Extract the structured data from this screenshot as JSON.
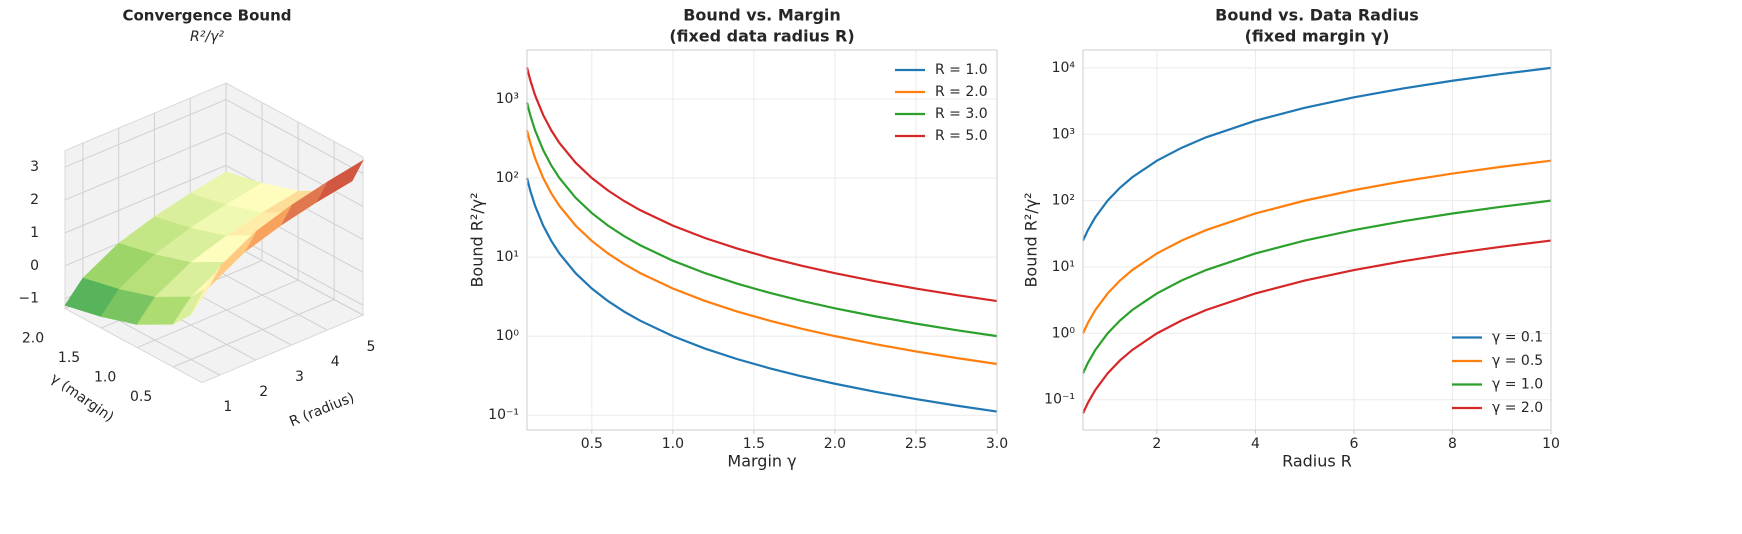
{
  "chart_data": [
    {
      "type": "surface",
      "title": "Convergence Bound",
      "subtitle": "R²/γ²",
      "xlabel": "R (radius)",
      "ylabel": "γ (margin)",
      "x": [
        0.5,
        1,
        2,
        3,
        4,
        5
      ],
      "y": [
        0.1,
        0.25,
        0.5,
        1,
        1.5,
        2
      ],
      "z": [
        [
          1.4,
          2.0,
          2.6,
          2.95,
          3.2,
          3.4
        ],
        [
          0.6,
          1.2,
          1.81,
          2.16,
          2.41,
          2.6
        ],
        [
          0.0,
          0.6,
          1.2,
          1.56,
          1.81,
          2.0
        ],
        [
          -0.6,
          0.0,
          0.6,
          0.95,
          1.2,
          1.4
        ],
        [
          -0.95,
          -0.35,
          0.25,
          0.6,
          0.85,
          1.05
        ],
        [
          -1.2,
          -0.6,
          0.0,
          0.35,
          0.6,
          0.8
        ]
      ],
      "xlim": [
        0.5,
        5
      ],
      "ylim": [
        0.1,
        2
      ],
      "zlim": [
        -1.3,
        3.5
      ],
      "xticks": [
        1,
        2,
        3,
        4,
        5
      ],
      "yticks": [
        0.5,
        {
          "value": 1,
          "label": "1.0"
        },
        1.5,
        {
          "value": 2,
          "label": "2.0"
        }
      ],
      "zticks": [
        {
          "value": -1,
          "label": "−1"
        },
        0,
        1,
        2,
        3
      ],
      "colormap": [
        "#1a9850",
        "#a6d96a",
        "#ffffbf",
        "#fdae61",
        "#a50026"
      ]
    },
    {
      "type": "line",
      "title": [
        "Bound vs. Margin",
        "(fixed data radius R)"
      ],
      "xlabel": "Margin γ",
      "ylabel": "Bound R²/γ²",
      "x": [
        0.1,
        0.12,
        0.15,
        0.2,
        0.25,
        0.3,
        0.4,
        0.5,
        0.6,
        0.7,
        0.8,
        1.0,
        1.2,
        1.4,
        1.6,
        1.8,
        2.0,
        2.25,
        2.5,
        2.75,
        3.0
      ],
      "series": [
        {
          "name": "R = 1.0",
          "color": "#1f77b4",
          "values": [
            100,
            69.44,
            44.44,
            25,
            16,
            11.11,
            6.25,
            4,
            2.778,
            2.041,
            1.5625,
            1,
            0.6944,
            0.5102,
            0.3906,
            0.3086,
            0.25,
            0.1975,
            0.16,
            0.1322,
            0.1111
          ]
        },
        {
          "name": "R = 2.0",
          "color": "#ff7f0e",
          "values": [
            400,
            277.8,
            177.8,
            100,
            64,
            44.44,
            25,
            16,
            11.11,
            8.163,
            6.25,
            4,
            2.778,
            2.041,
            1.5625,
            1.235,
            1,
            0.7901,
            0.64,
            0.5289,
            0.4444
          ]
        },
        {
          "name": "R = 3.0",
          "color": "#2ca02c",
          "values": [
            900,
            625,
            400,
            225,
            144,
            100,
            56.25,
            36,
            25,
            18.37,
            14.06,
            9,
            6.25,
            4.592,
            3.516,
            2.778,
            2.25,
            1.778,
            1.44,
            1.19,
            1
          ]
        },
        {
          "name": "R = 5.0",
          "color": "#d62728",
          "values": [
            2500,
            1736,
            1111,
            625,
            400,
            277.8,
            156.25,
            100,
            69.44,
            51.02,
            39.06,
            25,
            17.36,
            12.76,
            9.766,
            7.716,
            6.25,
            4.938,
            4,
            3.306,
            2.778
          ]
        }
      ],
      "xlim": [
        0.1,
        3.0
      ],
      "ylim": [
        0.065,
        4160
      ],
      "log_y": true,
      "grid": true,
      "legend": "upper right",
      "xticks": [
        0.5,
        {
          "value": 1,
          "label": "1.0"
        },
        1.5,
        {
          "value": 2,
          "label": "2.0"
        },
        2.5,
        {
          "value": 3,
          "label": "3.0"
        }
      ],
      "yticks": [
        {
          "value": 0.1,
          "label": "10⁻¹"
        },
        {
          "value": 1,
          "label": "10⁰"
        },
        {
          "value": 10,
          "label": "10¹"
        },
        {
          "value": 100,
          "label": "10²"
        },
        {
          "value": 1000,
          "label": "10³"
        }
      ]
    },
    {
      "type": "line",
      "title": [
        "Bound vs. Data Radius",
        "(fixed margin γ)"
      ],
      "xlabel": "Radius R",
      "ylabel": "Bound R²/γ²",
      "x": [
        0.5,
        0.6,
        0.75,
        1,
        1.25,
        1.5,
        2,
        2.5,
        3,
        4,
        5,
        6,
        7,
        8,
        9,
        10
      ],
      "series": [
        {
          "name": "γ = 0.1",
          "color": "#1f77b4",
          "values": [
            25,
            36,
            56.25,
            100,
            156.25,
            225,
            400,
            625,
            900,
            1600,
            2500,
            3600,
            4900,
            6400,
            8100,
            10000
          ]
        },
        {
          "name": "γ = 0.5",
          "color": "#ff7f0e",
          "values": [
            1,
            1.44,
            2.25,
            4,
            6.25,
            9,
            16,
            25,
            36,
            64,
            100,
            144,
            196,
            256,
            324,
            400
          ]
        },
        {
          "name": "γ = 1.0",
          "color": "#2ca02c",
          "values": [
            0.25,
            0.36,
            0.5625,
            1,
            1.5625,
            2.25,
            4,
            6.25,
            9,
            16,
            25,
            36,
            49,
            64,
            81,
            100
          ]
        },
        {
          "name": "γ = 2.0",
          "color": "#d62728",
          "values": [
            0.0625,
            0.09,
            0.1406,
            0.25,
            0.3906,
            0.5625,
            1,
            1.5625,
            2.25,
            4,
            6.25,
            9,
            12.25,
            16,
            20.25,
            25
          ]
        }
      ],
      "xlim": [
        0.5,
        10
      ],
      "ylim": [
        0.035,
        18600
      ],
      "log_y": true,
      "grid": true,
      "legend": "lower right",
      "xticks": [
        2,
        4,
        6,
        8,
        10
      ],
      "yticks": [
        {
          "value": 0.1,
          "label": "10⁻¹"
        },
        {
          "value": 1,
          "label": "10⁰"
        },
        {
          "value": 10,
          "label": "10¹"
        },
        {
          "value": 100,
          "label": "10²"
        },
        {
          "value": 1000,
          "label": "10³"
        },
        {
          "value": 10000,
          "label": "10⁴"
        }
      ]
    }
  ]
}
